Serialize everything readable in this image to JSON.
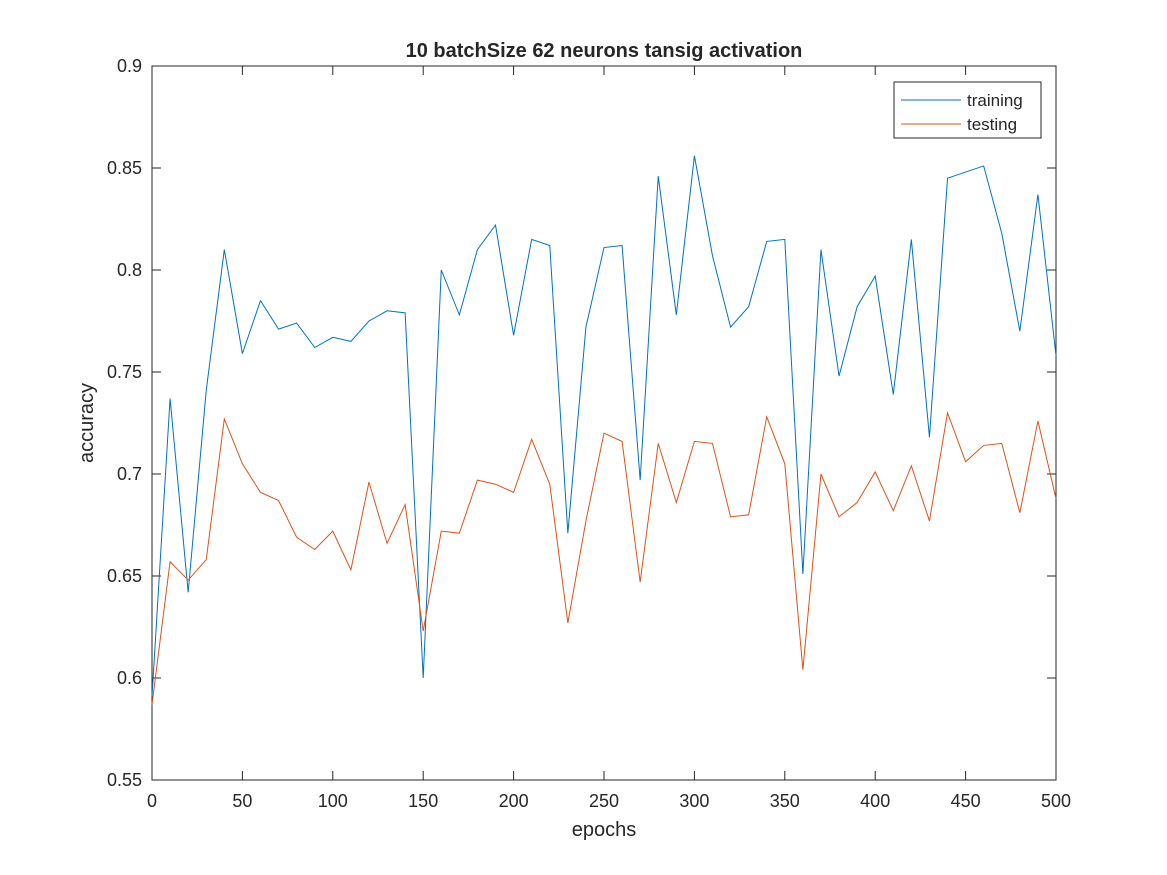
{
  "chart_data": {
    "type": "line",
    "title": "10 batchSize 62 neurons tansig activation",
    "xlabel": "epochs",
    "ylabel": "accuracy",
    "xlim": [
      0,
      500
    ],
    "ylim": [
      0.55,
      0.9
    ],
    "xticks": [
      0,
      50,
      100,
      150,
      200,
      250,
      300,
      350,
      400,
      450,
      500
    ],
    "yticks": [
      0.55,
      0.6,
      0.65,
      0.7,
      0.75,
      0.8,
      0.85,
      0.9
    ],
    "xtick_labels": [
      "0",
      "50",
      "100",
      "150",
      "200",
      "250",
      "300",
      "350",
      "400",
      "450",
      "500"
    ],
    "ytick_labels": [
      "0.55",
      "0.6",
      "0.65",
      "0.7",
      "0.75",
      "0.8",
      "0.85",
      "0.9"
    ],
    "grid": false,
    "legend_position": "top-right",
    "x": [
      0,
      10,
      20,
      30,
      40,
      50,
      60,
      70,
      80,
      90,
      100,
      110,
      120,
      130,
      140,
      150,
      160,
      170,
      180,
      190,
      200,
      210,
      220,
      230,
      240,
      250,
      260,
      270,
      280,
      290,
      300,
      310,
      320,
      330,
      340,
      350,
      360,
      370,
      380,
      390,
      400,
      410,
      420,
      430,
      440,
      450,
      460,
      470,
      480,
      490,
      500
    ],
    "series": [
      {
        "name": "training",
        "color": "#0072BD",
        "values": [
          0.591,
          0.737,
          0.642,
          0.741,
          0.81,
          0.759,
          0.785,
          0.771,
          0.774,
          0.762,
          0.767,
          0.765,
          0.775,
          0.78,
          0.779,
          0.6,
          0.8,
          0.778,
          0.81,
          0.822,
          0.768,
          0.815,
          0.812,
          0.671,
          0.772,
          0.811,
          0.812,
          0.697,
          0.846,
          0.778,
          0.856,
          0.807,
          0.772,
          0.782,
          0.814,
          0.815,
          0.651,
          0.81,
          0.748,
          0.782,
          0.797,
          0.739,
          0.815,
          0.718,
          0.845,
          0.848,
          0.851,
          0.818,
          0.77,
          0.837,
          0.758
        ]
      },
      {
        "name": "testing",
        "color": "#D95319",
        "values": [
          0.587,
          0.657,
          0.648,
          0.658,
          0.727,
          0.705,
          0.691,
          0.687,
          0.669,
          0.663,
          0.672,
          0.653,
          0.696,
          0.666,
          0.685,
          0.623,
          0.672,
          0.671,
          0.697,
          0.695,
          0.691,
          0.717,
          0.695,
          0.627,
          0.677,
          0.72,
          0.716,
          0.647,
          0.715,
          0.686,
          0.716,
          0.715,
          0.679,
          0.68,
          0.728,
          0.705,
          0.604,
          0.7,
          0.679,
          0.686,
          0.701,
          0.682,
          0.704,
          0.677,
          0.73,
          0.706,
          0.714,
          0.715,
          0.681,
          0.726,
          0.688
        ]
      }
    ]
  }
}
